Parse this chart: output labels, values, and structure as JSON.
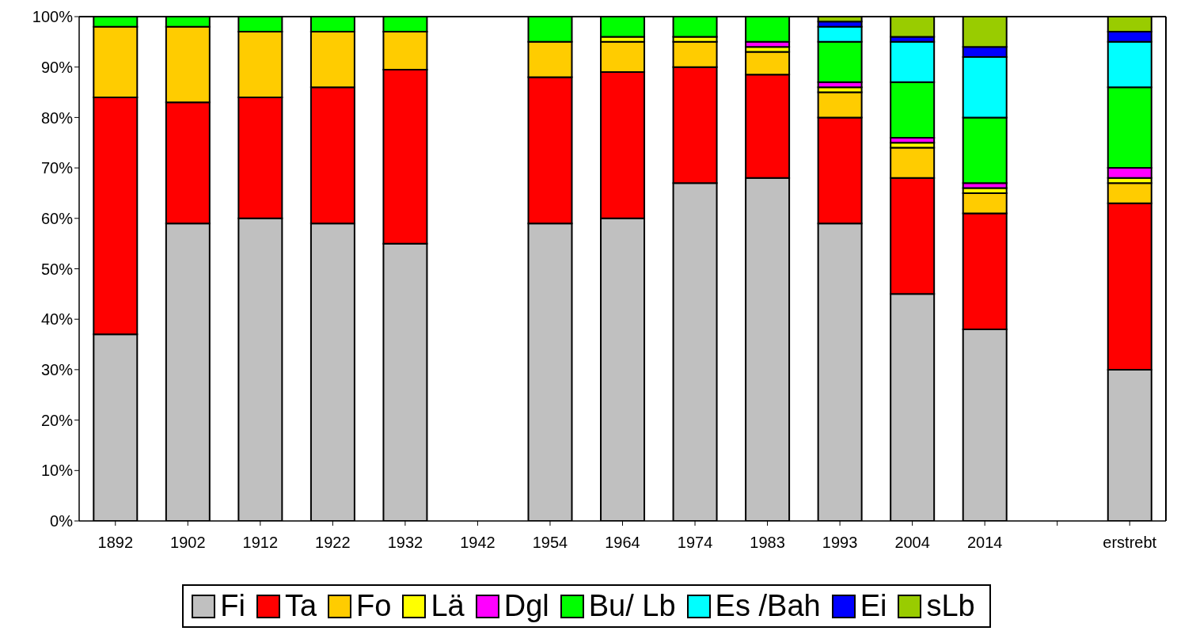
{
  "chart_data": {
    "type": "bar",
    "stacked": true,
    "categories": [
      "1892",
      "1902",
      "1912",
      "1922",
      "1932",
      "1942",
      "1954",
      "1964",
      "1974",
      "1983",
      "1993",
      "2004",
      "2014",
      null,
      "erstrebt"
    ],
    "series": [
      {
        "name": "Fi",
        "color": "#c0c0c0",
        "values": [
          37,
          59,
          60,
          59,
          55,
          null,
          59,
          60,
          67,
          68,
          59,
          45,
          38,
          null,
          30
        ]
      },
      {
        "name": "Ta",
        "color": "#ff0000",
        "values": [
          47,
          24,
          24,
          27,
          34.5,
          null,
          29,
          29,
          23,
          20.5,
          21,
          23,
          23,
          null,
          33
        ]
      },
      {
        "name": "Fo",
        "color": "#ffcc00",
        "values": [
          14,
          15,
          13,
          11,
          7.5,
          null,
          7,
          6,
          5,
          4.5,
          5,
          6,
          4,
          null,
          4
        ]
      },
      {
        "name": "Lä",
        "color": "#ffff00",
        "values": [
          0,
          0,
          0,
          0,
          0,
          null,
          0,
          1,
          1,
          1,
          1,
          1,
          1,
          null,
          1
        ]
      },
      {
        "name": "Dgl",
        "color": "#ff00ff",
        "values": [
          0,
          0,
          0,
          0,
          0,
          null,
          0,
          0,
          0,
          1,
          1,
          1,
          1,
          null,
          2
        ]
      },
      {
        "name": "Bu/ Lb",
        "color": "#00ff00",
        "values": [
          2,
          2,
          3,
          3,
          3,
          null,
          5,
          4,
          4,
          5,
          8,
          11,
          13,
          null,
          16
        ]
      },
      {
        "name": "Es /Bah",
        "color": "#00ffff",
        "values": [
          0,
          0,
          0,
          0,
          0,
          null,
          0,
          0,
          0,
          0,
          3,
          8,
          12,
          null,
          9
        ]
      },
      {
        "name": "Ei",
        "color": "#0000ff",
        "values": [
          0,
          0,
          0,
          0,
          0,
          null,
          0,
          0,
          0,
          0,
          1,
          1,
          2,
          null,
          2
        ]
      },
      {
        "name": "sLb",
        "color": "#99cc00",
        "values": [
          0,
          0,
          0,
          0,
          0,
          null,
          0,
          0,
          0,
          0,
          1,
          4,
          6,
          null,
          3
        ]
      }
    ],
    "ylim": [
      0,
      100
    ],
    "yticks": [
      {
        "value": 0,
        "label": "0%"
      },
      {
        "value": 10,
        "label": "10%"
      },
      {
        "value": 20,
        "label": "20%"
      },
      {
        "value": 30,
        "label": "30%"
      },
      {
        "value": 40,
        "label": "40%"
      },
      {
        "value": 50,
        "label": "50%"
      },
      {
        "value": 60,
        "label": "60%"
      },
      {
        "value": 70,
        "label": "70%"
      },
      {
        "value": 80,
        "label": "80%"
      },
      {
        "value": 90,
        "label": "90%"
      },
      {
        "value": 100,
        "label": "100%"
      }
    ],
    "legend": "bottom"
  }
}
